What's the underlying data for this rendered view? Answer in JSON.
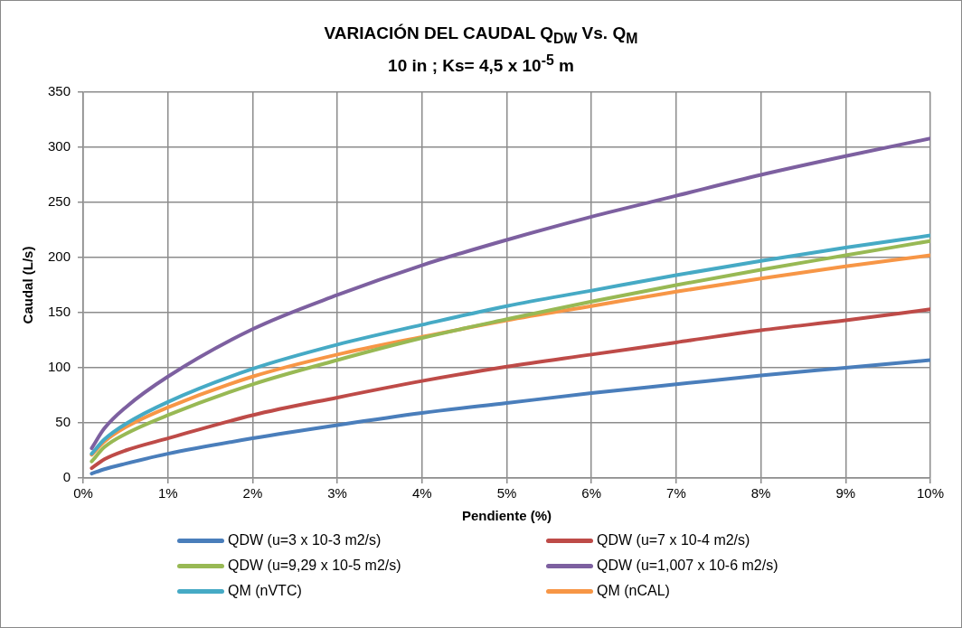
{
  "chart_data": {
    "type": "line",
    "title": "VARIACIÓN DEL CAUDAL Q$_{DW}$ Vs. Q$_{M}$",
    "subtitle": "10 in ; Ks= 4,5 x 10$^{-5}$ m",
    "xlabel": "Pendiente (%)",
    "ylabel": "Caudal (L/s)",
    "x": [
      0.1,
      0.25,
      0.5,
      1,
      2,
      3,
      4,
      5,
      6,
      7,
      8,
      9,
      10
    ],
    "series": [
      {
        "name": "QDW (u=3 x 10-3 m2/s)",
        "color": "#4a7ebb",
        "values": [
          4,
          8,
          13,
          22,
          36,
          48,
          59,
          68,
          77,
          85,
          93,
          100,
          107
        ]
      },
      {
        "name": "QDW (u=7 x 10-4 m2/s)",
        "color": "#be4b48",
        "values": [
          9,
          17,
          25,
          36,
          57,
          73,
          88,
          101,
          112,
          123,
          134,
          143,
          153
        ]
      },
      {
        "name": "QDW (u=9,29 x 10-5 m2/s)",
        "color": "#98b954",
        "values": [
          15,
          28,
          40,
          57,
          85,
          107,
          127,
          144,
          160,
          175,
          189,
          202,
          215
        ]
      },
      {
        "name": "QDW (u=1,007 x 10-6 m2/s)",
        "color": "#7d60a0",
        "values": [
          27,
          45,
          64,
          92,
          135,
          166,
          193,
          216,
          237,
          256,
          275,
          292,
          308
        ]
      },
      {
        "name": "QM (nVTC)",
        "color": "#46aac5",
        "values": [
          22,
          35,
          49,
          69,
          99,
          121,
          139,
          156,
          170,
          184,
          197,
          209,
          220
        ]
      },
      {
        "name": "QM (nCAL)",
        "color": "#f79646",
        "values": [
          21,
          33,
          46,
          64,
          92,
          112,
          128,
          143,
          156,
          169,
          181,
          192,
          202
        ]
      }
    ],
    "xlim": [
      0,
      10
    ],
    "xticks": [
      {
        "value": 0,
        "label": "0%"
      },
      {
        "value": 1,
        "label": "1%"
      },
      {
        "value": 2,
        "label": "2%"
      },
      {
        "value": 3,
        "label": "3%"
      },
      {
        "value": 4,
        "label": "4%"
      },
      {
        "value": 5,
        "label": "5%"
      },
      {
        "value": 6,
        "label": "6%"
      },
      {
        "value": 7,
        "label": "7%"
      },
      {
        "value": 8,
        "label": "8%"
      },
      {
        "value": 9,
        "label": "9%"
      },
      {
        "value": 10,
        "label": "10%"
      }
    ],
    "ylim": [
      0,
      350
    ],
    "yticks": [
      0,
      50,
      100,
      150,
      200,
      250,
      300,
      350
    ],
    "grid": true,
    "legend": "bottom",
    "marker": "none",
    "line_style": "solid"
  }
}
